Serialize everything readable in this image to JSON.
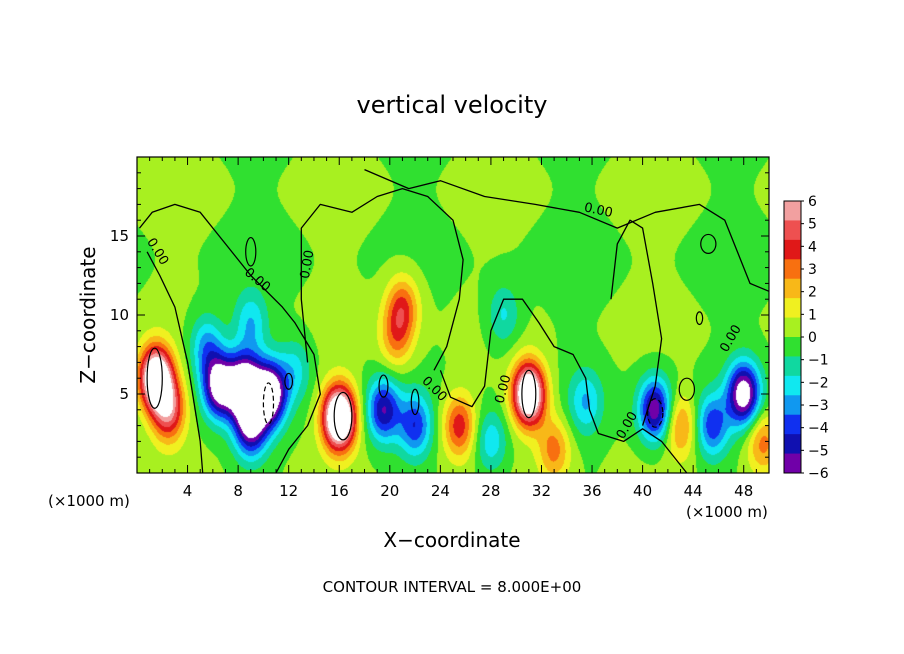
{
  "chart_data": {
    "type": "heatmap",
    "title": "vertical velocity",
    "xlabel": "X−coordinate",
    "ylabel": "Z−coordinate",
    "x_unit_left": "(×1000 m)",
    "x_unit_right": "(×1000 m)",
    "xlim": [
      0,
      50
    ],
    "ylim": [
      0,
      20
    ],
    "xticks": [
      4,
      8,
      12,
      16,
      20,
      24,
      28,
      32,
      36,
      40,
      44,
      48
    ],
    "yticks": [
      5,
      10,
      15
    ],
    "colorbar": {
      "min": -6,
      "max": 6,
      "labels": [
        "6",
        "5",
        "4",
        "3",
        "2",
        "1",
        "0",
        "−1",
        "−2",
        "−3",
        "−4",
        "−5",
        "−6"
      ],
      "colors": [
        "#f2a0a0",
        "#ee5050",
        "#e01818",
        "#f87010",
        "#f8b818",
        "#f0f020",
        "#a8f020",
        "#30e030",
        "#10d8a0",
        "#10e8f0",
        "#1098f0",
        "#1030f0",
        "#1010b0",
        "#7000a8"
      ]
    },
    "contour_labels": [
      "0.00",
      "0.00",
      "0.00",
      "0.00",
      "0.00",
      "0.00",
      "0.00",
      "0.00"
    ],
    "footer": "CONTOUR INTERVAL = 8.000E+00",
    "features": [
      {
        "x": 1.5,
        "z": 6.0,
        "w": 9
      },
      {
        "x": 2.5,
        "z": 4.0,
        "w": 5
      },
      {
        "x": 6.5,
        "z": 5.5,
        "w": -7
      },
      {
        "x": 8.5,
        "z": 5.5,
        "w": -8
      },
      {
        "x": 10.5,
        "z": 5.0,
        "w": -8
      },
      {
        "x": 9.0,
        "z": 3.0,
        "w": -6
      },
      {
        "x": 5.5,
        "z": 8.0,
        "w": -3
      },
      {
        "x": 9.0,
        "z": 9.5,
        "w": -2.5
      },
      {
        "x": 16.0,
        "z": 3.5,
        "w": 10
      },
      {
        "x": 19.5,
        "z": 4.0,
        "w": -5
      },
      {
        "x": 22.0,
        "z": 3.0,
        "w": -4
      },
      {
        "x": 21.0,
        "z": 10.5,
        "w": 3.5
      },
      {
        "x": 20.5,
        "z": 8.5,
        "w": 2.5
      },
      {
        "x": 25.5,
        "z": 3.0,
        "w": 4
      },
      {
        "x": 28.0,
        "z": 2.0,
        "w": -2.5
      },
      {
        "x": 31.0,
        "z": 5.0,
        "w": 9
      },
      {
        "x": 33.0,
        "z": 1.5,
        "w": 3
      },
      {
        "x": 35.5,
        "z": 4.5,
        "w": -2.5
      },
      {
        "x": 41.0,
        "z": 4.0,
        "w": -6
      },
      {
        "x": 43.0,
        "z": 3.0,
        "w": 3
      },
      {
        "x": 45.5,
        "z": 3.0,
        "w": -4
      },
      {
        "x": 48.0,
        "z": 5.0,
        "w": -7
      },
      {
        "x": 49.5,
        "z": 2.0,
        "w": 3
      },
      {
        "x": 29.0,
        "z": 10.0,
        "w": -2
      },
      {
        "x": 12.5,
        "z": 6.5,
        "w": -2
      }
    ],
    "zero_contours": [
      [
        [
          0.2,
          15.5
        ],
        [
          1.2,
          16.5
        ],
        [
          3.0,
          17.0
        ],
        [
          5.0,
          16.5
        ],
        [
          7.0,
          14.5
        ],
        [
          9.0,
          12.5
        ],
        [
          11.5,
          10.5
        ],
        [
          12.5,
          9.5
        ],
        [
          14.0,
          7.5
        ],
        [
          14.5,
          5.0
        ],
        [
          13.5,
          3.0
        ],
        [
          12.0,
          1.5
        ],
        [
          11.0,
          0.0
        ]
      ],
      [
        [
          0.8,
          14.0
        ],
        [
          1.8,
          12.5
        ],
        [
          3.0,
          10.5
        ],
        [
          4.0,
          7.0
        ],
        [
          4.5,
          4.5
        ],
        [
          5.0,
          2.0
        ],
        [
          5.2,
          0.0
        ]
      ],
      [
        [
          13.5,
          7.0
        ],
        [
          13.0,
          11.0
        ],
        [
          13.0,
          15.5
        ],
        [
          14.5,
          17.0
        ],
        [
          17.0,
          16.5
        ],
        [
          19.0,
          17.5
        ],
        [
          21.0,
          18.0
        ],
        [
          23.0,
          17.5
        ],
        [
          25.0,
          16.0
        ],
        [
          25.8,
          13.5
        ],
        [
          25.5,
          11.0
        ],
        [
          24.5,
          8.0
        ],
        [
          23.5,
          6.5
        ]
      ],
      [
        [
          18.0,
          19.2
        ],
        [
          21.5,
          18.0
        ],
        [
          24.0,
          18.5
        ],
        [
          27.5,
          17.5
        ],
        [
          31.5,
          17.0
        ],
        [
          35.0,
          16.5
        ],
        [
          38.0,
          15.5
        ],
        [
          41.0,
          16.5
        ],
        [
          44.5,
          17.0
        ],
        [
          46.5,
          16.0
        ],
        [
          47.5,
          14.0
        ],
        [
          48.5,
          12.0
        ],
        [
          50.0,
          11.5
        ]
      ],
      [
        [
          24.0,
          6.5
        ],
        [
          24.8,
          4.8
        ],
        [
          26.5,
          4.2
        ],
        [
          27.5,
          5.5
        ],
        [
          28.0,
          9.0
        ],
        [
          29.0,
          11.0
        ],
        [
          30.5,
          11.0
        ],
        [
          31.8,
          9.5
        ],
        [
          33.0,
          8.0
        ],
        [
          34.5,
          7.5
        ],
        [
          35.5,
          6.0
        ],
        [
          35.8,
          4.0
        ],
        [
          36.5,
          2.5
        ],
        [
          38.5,
          2.0
        ],
        [
          40.0,
          2.8
        ],
        [
          41.5,
          2.0
        ],
        [
          43.5,
          0.0
        ]
      ],
      [
        [
          37.5,
          11.0
        ],
        [
          38.0,
          14.5
        ],
        [
          39.0,
          16.0
        ],
        [
          40.0,
          15.5
        ],
        [
          40.8,
          12.0
        ],
        [
          41.5,
          8.5
        ],
        [
          41.0,
          5.5
        ],
        [
          40.0,
          3.0
        ]
      ]
    ],
    "closed_contours": [
      {
        "x": 1.4,
        "z": 6.0,
        "rx": 0.6,
        "rz": 1.9,
        "dashed": false
      },
      {
        "x": 16.3,
        "z": 3.6,
        "rx": 0.7,
        "rz": 1.5,
        "dashed": false
      },
      {
        "x": 31.0,
        "z": 5.0,
        "rx": 0.55,
        "rz": 1.5,
        "dashed": false
      },
      {
        "x": 10.4,
        "z": 4.4,
        "rx": 0.4,
        "rz": 1.3,
        "dashed": true
      },
      {
        "x": 41.0,
        "z": 3.8,
        "rx": 0.6,
        "rz": 0.9,
        "dashed": true
      },
      {
        "x": 19.5,
        "z": 5.5,
        "rx": 0.35,
        "rz": 0.7,
        "dashed": false
      },
      {
        "x": 22.0,
        "z": 4.5,
        "rx": 0.3,
        "rz": 0.8,
        "dashed": false
      },
      {
        "x": 43.5,
        "z": 5.3,
        "rx": 0.6,
        "rz": 0.7,
        "dashed": false
      },
      {
        "x": 12.0,
        "z": 5.8,
        "rx": 0.3,
        "rz": 0.5,
        "dashed": false
      },
      {
        "x": 44.5,
        "z": 9.8,
        "rx": 0.25,
        "rz": 0.4,
        "dashed": false
      },
      {
        "x": 45.2,
        "z": 14.5,
        "rx": 0.6,
        "rz": 0.6,
        "dashed": false
      },
      {
        "x": 9.0,
        "z": 14.0,
        "rx": 0.4,
        "rz": 0.9,
        "dashed": false
      }
    ]
  }
}
